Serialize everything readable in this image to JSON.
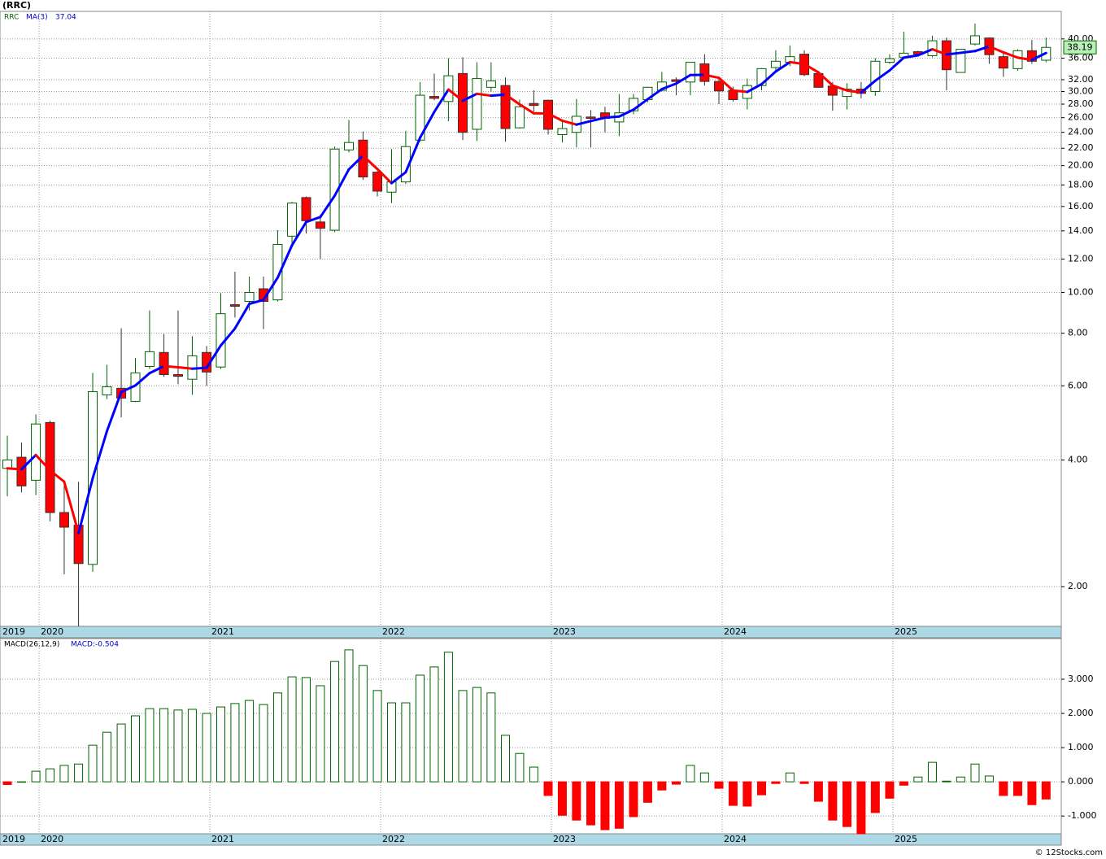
{
  "chart_data": [
    {
      "type": "candlestick",
      "title": "(RRC)",
      "name": "RRC",
      "x": [
        2019.814,
        2019.897,
        2019.981,
        2020.064,
        2020.147,
        2020.231,
        2020.314,
        2020.397,
        2020.481,
        2020.564,
        2020.647,
        2020.731,
        2020.814,
        2020.897,
        2020.981,
        2021.064,
        2021.147,
        2021.231,
        2021.314,
        2021.397,
        2021.481,
        2021.564,
        2021.647,
        2021.731,
        2021.814,
        2021.897,
        2021.981,
        2022.064,
        2022.147,
        2022.231,
        2022.314,
        2022.397,
        2022.481,
        2022.564,
        2022.647,
        2022.731,
        2022.814,
        2022.897,
        2022.981,
        2023.064,
        2023.147,
        2023.231,
        2023.314,
        2023.397,
        2023.481,
        2023.564,
        2023.647,
        2023.731,
        2023.814,
        2023.897,
        2023.981,
        2024.064,
        2024.147,
        2024.231,
        2024.314,
        2024.397,
        2024.481,
        2024.564,
        2024.647,
        2024.731,
        2024.814,
        2024.897,
        2024.981,
        2025.064,
        2025.147,
        2025.231,
        2025.314,
        2025.397,
        2025.481,
        2025.564,
        2025.647,
        2025.731,
        2025.814,
        2025.897
      ],
      "open": [
        3.82,
        4.06,
        3.58,
        4.91,
        3.0,
        2.8,
        2.26,
        5.71,
        5.92,
        5.51,
        6.67,
        7.2,
        6.38,
        6.22,
        7.2,
        6.65,
        9.35,
        9.52,
        10.2,
        9.6,
        13.6,
        16.8,
        14.7,
        14.05,
        21.8,
        23.0,
        19.3,
        17.3,
        18.3,
        23.0,
        29.2,
        28.4,
        33.1,
        24.4,
        30.7,
        31.0,
        24.6,
        28.1,
        28.6,
        23.7,
        24.0,
        26.1,
        26.7,
        25.4,
        27.0,
        28.7,
        30.2,
        32.0,
        31.6,
        34.9,
        31.7,
        30.2,
        28.9,
        31.0,
        34.2,
        35.2,
        36.8,
        33.1,
        30.9,
        29.2,
        30.4,
        30.0,
        35.2,
        36.2,
        37.3,
        36.5,
        39.6,
        33.3,
        38.9,
        40.2,
        36.3,
        34.0,
        37.5,
        35.6
      ],
      "high": [
        4.57,
        4.4,
        5.13,
        4.96,
        3.58,
        3.55,
        6.44,
        6.73,
        8.22,
        6.98,
        9.06,
        7.97,
        9.06,
        7.87,
        7.46,
        9.96,
        11.2,
        10.9,
        10.9,
        14.05,
        16.4,
        16.9,
        15.3,
        22.2,
        25.7,
        24.1,
        19.4,
        21.9,
        24.2,
        31.6,
        33.1,
        36.0,
        36.2,
        35.2,
        35.2,
        32.4,
        28.7,
        30.2,
        28.7,
        25.7,
        28.8,
        27.1,
        27.6,
        29.6,
        29.6,
        30.8,
        33.4,
        32.4,
        35.2,
        36.8,
        32.3,
        30.8,
        32.2,
        34.1,
        37.6,
        38.6,
        37.6,
        33.6,
        31.6,
        31.4,
        31.6,
        36.0,
        36.8,
        41.6,
        37.5,
        40.7,
        40.3,
        37.9,
        43.5,
        40.3,
        37.1,
        37.8,
        39.8,
        40.3
      ],
      "low": [
        3.28,
        3.35,
        3.3,
        2.86,
        2.14,
        1.61,
        2.17,
        5.58,
        5.05,
        5.49,
        6.58,
        6.3,
        6.05,
        5.71,
        6.0,
        6.58,
        8.72,
        9.06,
        8.18,
        9.52,
        13.0,
        13.8,
        12.0,
        13.9,
        21.5,
        18.5,
        16.9,
        16.3,
        18.1,
        22.8,
        28.6,
        25.5,
        23.0,
        22.9,
        30.0,
        22.8,
        24.5,
        26.9,
        23.7,
        22.7,
        22.1,
        22.1,
        24.0,
        23.5,
        26.5,
        28.3,
        30.0,
        29.4,
        29.4,
        31.0,
        28.0,
        28.4,
        27.2,
        30.2,
        33.6,
        34.5,
        32.6,
        30.6,
        27.0,
        27.2,
        28.9,
        29.3,
        34.9,
        35.9,
        36.5,
        36.2,
        30.2,
        33.3,
        38.6,
        34.9,
        32.5,
        33.6,
        34.9,
        35.2
      ],
      "close": [
        4.0,
        3.47,
        4.87,
        3.0,
        2.77,
        2.27,
        5.81,
        5.97,
        5.61,
        6.44,
        7.23,
        6.38,
        6.32,
        7.07,
        6.47,
        8.9,
        9.27,
        10.0,
        9.52,
        13.0,
        16.3,
        14.8,
        14.2,
        21.9,
        22.7,
        18.8,
        17.4,
        18.3,
        22.2,
        29.4,
        28.9,
        32.7,
        24.0,
        32.2,
        31.8,
        24.5,
        27.6,
        27.8,
        24.4,
        24.5,
        26.2,
        25.9,
        25.9,
        26.7,
        28.9,
        30.7,
        31.6,
        31.7,
        35.2,
        31.7,
        30.1,
        28.7,
        31.0,
        34.0,
        35.4,
        36.3,
        32.9,
        30.7,
        29.4,
        30.4,
        29.7,
        35.4,
        35.9,
        37.0,
        36.8,
        39.6,
        33.8,
        37.8,
        40.7,
        36.7,
        34.1,
        37.5,
        35.4,
        38.19
      ],
      "up_color": "#006400",
      "down_color": "#ff0000",
      "ma": {
        "name": "MA(3)",
        "up_color": "#0000ff",
        "down_color": "#ff0000",
        "values": [
          3.82,
          3.8,
          4.11,
          3.78,
          3.55,
          2.68,
          3.62,
          4.68,
          5.8,
          6.01,
          6.43,
          6.68,
          6.64,
          6.59,
          6.62,
          7.48,
          8.21,
          9.39,
          9.6,
          10.84,
          12.94,
          14.7,
          15.1,
          16.97,
          19.6,
          21.13,
          19.63,
          18.17,
          19.3,
          23.3,
          26.83,
          30.33,
          28.53,
          29.63,
          29.33,
          29.5,
          27.97,
          26.63,
          26.6,
          25.57,
          25.03,
          25.53,
          26.0,
          26.17,
          27.17,
          28.77,
          30.4,
          31.33,
          32.83,
          32.87,
          32.33,
          30.17,
          29.93,
          31.23,
          33.47,
          35.23,
          34.87,
          33.3,
          31.0,
          30.17,
          29.83,
          31.83,
          33.67,
          36.1,
          36.57,
          37.8,
          36.73,
          37.07,
          37.43,
          38.4,
          37.17,
          36.1,
          35.67,
          37.04
        ]
      },
      "log": true,
      "grid": true,
      "ylim": [
        1.61,
        46.5
      ],
      "yticks": [
        {
          "value": 2,
          "label": "2.00"
        },
        {
          "value": 4,
          "label": "4.00"
        },
        {
          "value": 6,
          "label": "6.00"
        },
        {
          "value": 8,
          "label": "8.00"
        },
        {
          "value": 10,
          "label": "10.00"
        },
        {
          "value": 12,
          "label": "12.00"
        },
        {
          "value": 14,
          "label": "14.00"
        },
        {
          "value": 16,
          "label": "16.00"
        },
        {
          "value": 18,
          "label": "18.00"
        },
        {
          "value": 20,
          "label": "20.00"
        },
        {
          "value": 22,
          "label": "22.00"
        },
        {
          "value": 24,
          "label": "24.00"
        },
        {
          "value": 26,
          "label": "26.00"
        },
        {
          "value": 28,
          "label": "28.00"
        },
        {
          "value": 30,
          "label": "30.00"
        },
        {
          "value": 32,
          "label": "32.00"
        },
        {
          "value": 36,
          "label": "36.00"
        },
        {
          "value": 40,
          "label": "40.00"
        }
      ],
      "xlim": [
        2019.771,
        2025.986
      ],
      "xticks": [
        2019,
        2020,
        2021,
        2022,
        2023,
        2024,
        2025
      ]
    },
    {
      "type": "bar",
      "title": "MACD(26,12,9)",
      "series": [
        {
          "name": "MACD:",
          "up_color": "#006400",
          "down_color": "#ff0000",
          "values": [
            -0.08,
            0.0,
            0.31,
            0.38,
            0.48,
            0.52,
            1.07,
            1.45,
            1.69,
            1.93,
            2.14,
            2.14,
            2.1,
            2.12,
            2.0,
            2.19,
            2.29,
            2.38,
            2.26,
            2.6,
            3.07,
            3.05,
            2.81,
            3.52,
            3.86,
            3.4,
            2.67,
            2.31,
            2.31,
            3.12,
            3.36,
            3.79,
            2.67,
            2.76,
            2.6,
            1.36,
            0.83,
            0.43,
            -0.4,
            -0.98,
            -1.12,
            -1.26,
            -1.4,
            -1.36,
            -1.02,
            -0.6,
            -0.24,
            -0.07,
            0.48,
            0.26,
            -0.19,
            -0.69,
            -0.71,
            -0.38,
            -0.05,
            0.26,
            -0.05,
            -0.57,
            -1.12,
            -1.31,
            -1.52,
            -0.9,
            -0.48,
            -0.1,
            0.14,
            0.57,
            0.02,
            0.14,
            0.52,
            0.17,
            -0.4,
            -0.4,
            -0.67,
            -0.504
          ]
        }
      ],
      "grid": true,
      "ylim": [
        -1.52,
        4.19
      ],
      "yticks": [
        {
          "value": -1,
          "label": "-1.000"
        },
        {
          "value": 0,
          "label": "0.000"
        },
        {
          "value": 1,
          "label": "1.000"
        },
        {
          "value": 2,
          "label": "2.000"
        },
        {
          "value": 3,
          "label": "3.000"
        }
      ]
    }
  ],
  "footer": "© 12Stocks.com"
}
